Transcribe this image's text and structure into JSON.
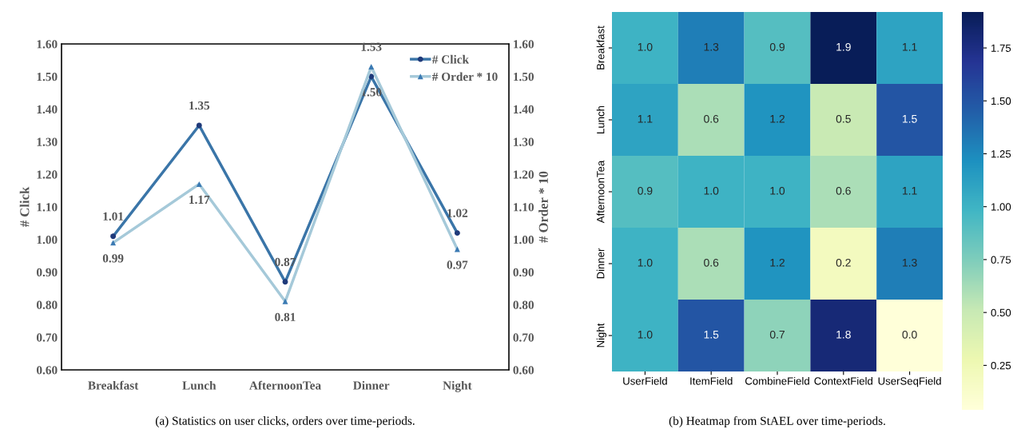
{
  "chart_data": [
    {
      "type": "line",
      "categories": [
        "Breakfast",
        "Lunch",
        "AfternoonTea",
        "Dinner",
        "Night"
      ],
      "ylabel": "# Click",
      "y2label": "# Order * 10",
      "ylim": [
        0.6,
        1.6
      ],
      "yticks": [
        {
          "value": 0.6,
          "label": "0.60"
        },
        {
          "value": 0.7,
          "label": "0.70"
        },
        {
          "value": 0.8,
          "label": "0.80"
        },
        {
          "value": 0.9,
          "label": "0.90"
        },
        {
          "value": 1.0,
          "label": "1.00"
        },
        {
          "value": 1.1,
          "label": "1.10"
        },
        {
          "value": 1.2,
          "label": "1.20"
        },
        {
          "value": 1.3,
          "label": "1.30"
        },
        {
          "value": 1.4,
          "label": "1.40"
        },
        {
          "value": 1.5,
          "label": "1.50"
        },
        {
          "value": 1.6,
          "label": "1.60"
        }
      ],
      "y2lim": [
        0.6,
        1.6
      ],
      "y2ticks": [
        {
          "value": 0.6,
          "label": "0.60"
        },
        {
          "value": 0.7,
          "label": "0.70"
        },
        {
          "value": 0.8,
          "label": "0.80"
        },
        {
          "value": 0.9,
          "label": "0.90"
        },
        {
          "value": 1.0,
          "label": "1.00"
        },
        {
          "value": 1.1,
          "label": "1.10"
        },
        {
          "value": 1.2,
          "label": "1.20"
        },
        {
          "value": 1.3,
          "label": "1.30"
        },
        {
          "value": 1.4,
          "label": "1.40"
        },
        {
          "value": 1.5,
          "label": "1.50"
        },
        {
          "value": 1.6,
          "label": "1.60"
        }
      ],
      "series": [
        {
          "name": "# Click",
          "color": "#3a75a8",
          "marker": "circle",
          "values": [
            1.01,
            1.35,
            0.87,
            1.5,
            1.02
          ],
          "value_labels": [
            "1.01",
            "1.35",
            "0.87",
            "1.50",
            "1.02"
          ]
        },
        {
          "name": "# Order * 10",
          "color": "#a5c9d9",
          "marker": "triangle",
          "axis": "y2",
          "values": [
            0.99,
            1.17,
            0.81,
            1.53,
            0.97
          ],
          "value_labels": [
            "0.99",
            "1.17",
            "0.81",
            "1.53",
            "0.97"
          ]
        }
      ],
      "legend": "top right",
      "grid": false,
      "line_style": "solid",
      "annotations": [
        "(a) Statistics on user clicks, orders over time-periods."
      ]
    },
    {
      "type": "heatmap",
      "categories": [
        "UserField",
        "ItemField",
        "CombineField",
        "ContextField",
        "UserSeqField"
      ],
      "y_categories": [
        "Breakfast",
        "Lunch",
        "AfternoonTea",
        "Dinner",
        "Night"
      ],
      "cells": [
        [
          1.0,
          1.3,
          0.9,
          1.92,
          1.1
        ],
        [
          1.1,
          0.6,
          1.2,
          0.5,
          1.5
        ],
        [
          0.9,
          1.0,
          1.0,
          0.6,
          1.1
        ],
        [
          1.0,
          0.6,
          1.2,
          0.2,
          1.3
        ],
        [
          1.0,
          1.5,
          0.7,
          1.8,
          0.04
        ]
      ],
      "cell_labels": [
        [
          "1.0",
          "1.3",
          "0.9",
          "1.9",
          "1.1"
        ],
        [
          "1.1",
          "0.6",
          "1.2",
          "0.5",
          "1.5"
        ],
        [
          "0.9",
          "1.0",
          "1.0",
          "0.6",
          "1.1"
        ],
        [
          "1.0",
          "0.6",
          "1.2",
          "0.2",
          "1.3"
        ],
        [
          "1.0",
          "1.5",
          "0.7",
          "1.8",
          "0.0"
        ]
      ],
      "clim": [
        0.04,
        1.92
      ],
      "cticks": [
        {
          "value": 0.25,
          "label": "0.25"
        },
        {
          "value": 0.5,
          "label": "0.50"
        },
        {
          "value": 0.75,
          "label": "0.75"
        },
        {
          "value": 1.0,
          "label": "1.00"
        },
        {
          "value": 1.25,
          "label": "1.25"
        },
        {
          "value": 1.5,
          "label": "1.50"
        },
        {
          "value": 1.75,
          "label": "1.75"
        }
      ],
      "annotations": [
        "(b) Heatmap from StAEL over time-periods."
      ]
    }
  ]
}
